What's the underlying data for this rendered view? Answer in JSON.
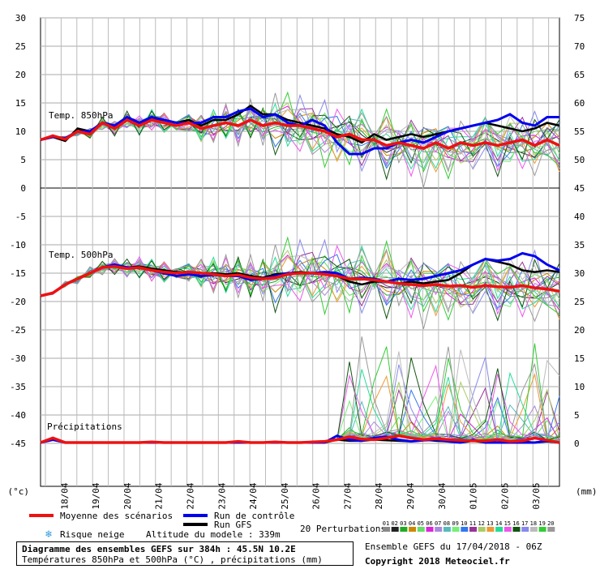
{
  "chart_data": {
    "type": "line",
    "x_dates": [
      "18/04",
      "19/04",
      "20/04",
      "21/04",
      "22/04",
      "23/04",
      "24/04",
      "25/04",
      "26/04",
      "27/04",
      "28/04",
      "29/04",
      "30/04",
      "01/05",
      "02/05",
      "03/05"
    ],
    "left_axis_ticks": [
      30,
      25,
      20,
      15,
      10,
      5,
      0,
      -5,
      -10,
      -15,
      -20,
      -25,
      -30,
      -35,
      -40,
      -45
    ],
    "right_axis_ticks": [
      75,
      70,
      65,
      60,
      55,
      50,
      45,
      40,
      35,
      30,
      25,
      20,
      15,
      10,
      5,
      0
    ],
    "left_unit": "(°c)",
    "right_unit": "(mm)",
    "panel_labels": {
      "t850": "Temp. 850hPa",
      "t500": "Temp. 500hPa",
      "precip": "Précipitations"
    },
    "series": [
      {
        "name": "Moyenne des scénarios",
        "color": "#ee1111",
        "t850": [
          8.5,
          9.2,
          8.6,
          10,
          9.5,
          11.5,
          10.5,
          12,
          11,
          12,
          11.5,
          11,
          11.5,
          10.5,
          11,
          11.5,
          11,
          12,
          11,
          11.5,
          11,
          11,
          10.5,
          10,
          9,
          9.5,
          8.5,
          8.5,
          7.5,
          8,
          7.5,
          7,
          8,
          7,
          8,
          7.5,
          8,
          7.5,
          8,
          8.5,
          7.5,
          8.5,
          7.5
        ],
        "t500": [
          -19,
          -18.5,
          -17,
          -16,
          -15,
          -14,
          -13.8,
          -14.2,
          -14,
          -14.5,
          -14.8,
          -15,
          -14.8,
          -15,
          -15.2,
          -15.5,
          -15.3,
          -15.8,
          -16,
          -15.8,
          -15.2,
          -15,
          -15,
          -15.2,
          -15.5,
          -16,
          -16,
          -16.2,
          -16.5,
          -16.8,
          -17,
          -17.2,
          -17,
          -17.3,
          -17.2,
          -17.5,
          -17.2,
          -17.4,
          -17.5,
          -17.2,
          -17.6,
          -17.8,
          -18.2
        ],
        "precip": [
          0,
          0.8,
          0,
          0,
          0,
          0,
          0,
          0,
          0,
          0.1,
          0,
          0,
          0,
          0,
          0,
          0,
          0.2,
          0,
          0,
          0.1,
          0,
          0,
          0.1,
          0.2,
          0.5,
          1.0,
          0.6,
          0.5,
          0.8,
          1.2,
          0.8,
          0.5,
          0.7,
          0.5,
          0.4,
          0.3,
          0.3,
          0.5,
          0.2,
          0.3,
          0.8,
          0.4,
          0
        ]
      },
      {
        "name": "Run de contrôle",
        "color": "#0000ee",
        "t850": [
          8.5,
          9,
          8.8,
          10,
          10,
          11.5,
          11,
          12.5,
          11.5,
          12.5,
          12,
          11.5,
          11.5,
          11.5,
          12.5,
          12.5,
          13.5,
          14,
          12.5,
          13,
          11.5,
          11,
          12,
          11,
          8,
          6,
          6,
          7,
          7,
          8,
          8.5,
          8,
          9,
          10,
          10.5,
          11,
          11.5,
          12,
          13,
          11.5,
          11,
          12.5,
          12.5
        ],
        "t500": [
          -19,
          -18.5,
          -17,
          -16,
          -15,
          -14,
          -13.5,
          -14,
          -14,
          -14.5,
          -15,
          -15.5,
          -15.2,
          -15.5,
          -15.3,
          -15.5,
          -15.5,
          -16.2,
          -16,
          -15.5,
          -15,
          -15,
          -15,
          -14.8,
          -15,
          -16,
          -15.8,
          -16,
          -16.5,
          -16,
          -16.2,
          -16,
          -15.5,
          -15,
          -14.5,
          -13.5,
          -12.5,
          -12.8,
          -12.5,
          -11.5,
          -12,
          -13.5,
          -14.5
        ],
        "precip": [
          0,
          0.5,
          0,
          0,
          0,
          0,
          0,
          0,
          0,
          0,
          0,
          0,
          0,
          0,
          0,
          0,
          0,
          0,
          0,
          0,
          0,
          0,
          0,
          0,
          1.2,
          0.5,
          0.3,
          0.8,
          1.0,
          0.5,
          0.2,
          0.4,
          0.5,
          0.2,
          0,
          0.5,
          0,
          0,
          0,
          0,
          0,
          0.3,
          0
        ]
      },
      {
        "name": "Run GFS",
        "color": "#000000",
        "t850": [
          8.5,
          9,
          8.3,
          10.5,
          10,
          11.5,
          10.8,
          12,
          11.5,
          12,
          12,
          11.5,
          12,
          11,
          12,
          12,
          13,
          14.5,
          13,
          13,
          12,
          11.5,
          11,
          10.5,
          9.5,
          9,
          8,
          9.5,
          8.5,
          9,
          9.5,
          9,
          9.5,
          10,
          10.5,
          11,
          11.5,
          11,
          10.5,
          10,
          10.5,
          11.5,
          11
        ],
        "t500": [
          -19,
          -18.5,
          -17,
          -16,
          -15,
          -14,
          -13.6,
          -14,
          -13.8,
          -14.2,
          -14.5,
          -14.8,
          -14.8,
          -15,
          -15,
          -15.2,
          -15,
          -15.5,
          -15.8,
          -15.2,
          -15,
          -14.8,
          -15,
          -15,
          -15.5,
          -16.5,
          -17,
          -16.5,
          -16.5,
          -16.8,
          -16.5,
          -16.8,
          -16.5,
          -16.2,
          -15,
          -13.5,
          -12.5,
          -13,
          -13.5,
          -14.5,
          -14.8,
          -14.5,
          -14.8
        ],
        "precip": [
          0,
          0.6,
          0,
          0,
          0,
          0,
          0,
          0,
          0,
          0,
          0,
          0,
          0,
          0,
          0,
          0,
          0,
          0,
          0,
          0,
          0,
          0,
          0,
          0,
          0.5,
          0.3,
          0.3,
          0.5,
          0.4,
          0.3,
          0.2,
          0.5,
          0.3,
          0.2,
          0,
          0.3,
          0,
          0,
          0,
          0.2,
          0,
          0.2,
          0
        ]
      }
    ],
    "perturbation_colors": [
      "#888888",
      "#222222",
      "#22aa22",
      "#cc8800",
      "#66dd66",
      "#dd22dd",
      "#aa88dd",
      "#55bbbb",
      "#77ee77",
      "#3377ee",
      "#993399",
      "#aacc66",
      "#ee9933",
      "#22dd99",
      "#ee55ee",
      "#115511",
      "#8888ee",
      "#bbbbbb",
      "#33cc33",
      "#999999"
    ],
    "perturbation_offsets": [
      0.0,
      0.08,
      0.16,
      0.24,
      0.32,
      0.4,
      0.48,
      0.56,
      0.64,
      0.72,
      0.8,
      0.88,
      0.96,
      1.04,
      1.12,
      1.2,
      1.28,
      1.36,
      1.44,
      1.52
    ],
    "snow_risk_label": "Risque neige",
    "altitude_label": "Altitude du modele : 339m",
    "perturbations_label": "20 Perturbations",
    "perturbation_numbers": [
      "01",
      "02",
      "03",
      "04",
      "05",
      "06",
      "07",
      "08",
      "09",
      "10",
      "11",
      "12",
      "13",
      "14",
      "15",
      "16",
      "17",
      "18",
      "19",
      "20"
    ]
  },
  "info": {
    "title": "Diagramme des ensembles GEFS sur 384h : 45.5N 10.2E",
    "subtitle": "Températures 850hPa et 500hPa (°C) , précipitations (mm)",
    "ensemble": "Ensemble GEFS du 17/04/2018 - 06Z",
    "copyright": "Copyright 2018 Meteociel.fr"
  }
}
